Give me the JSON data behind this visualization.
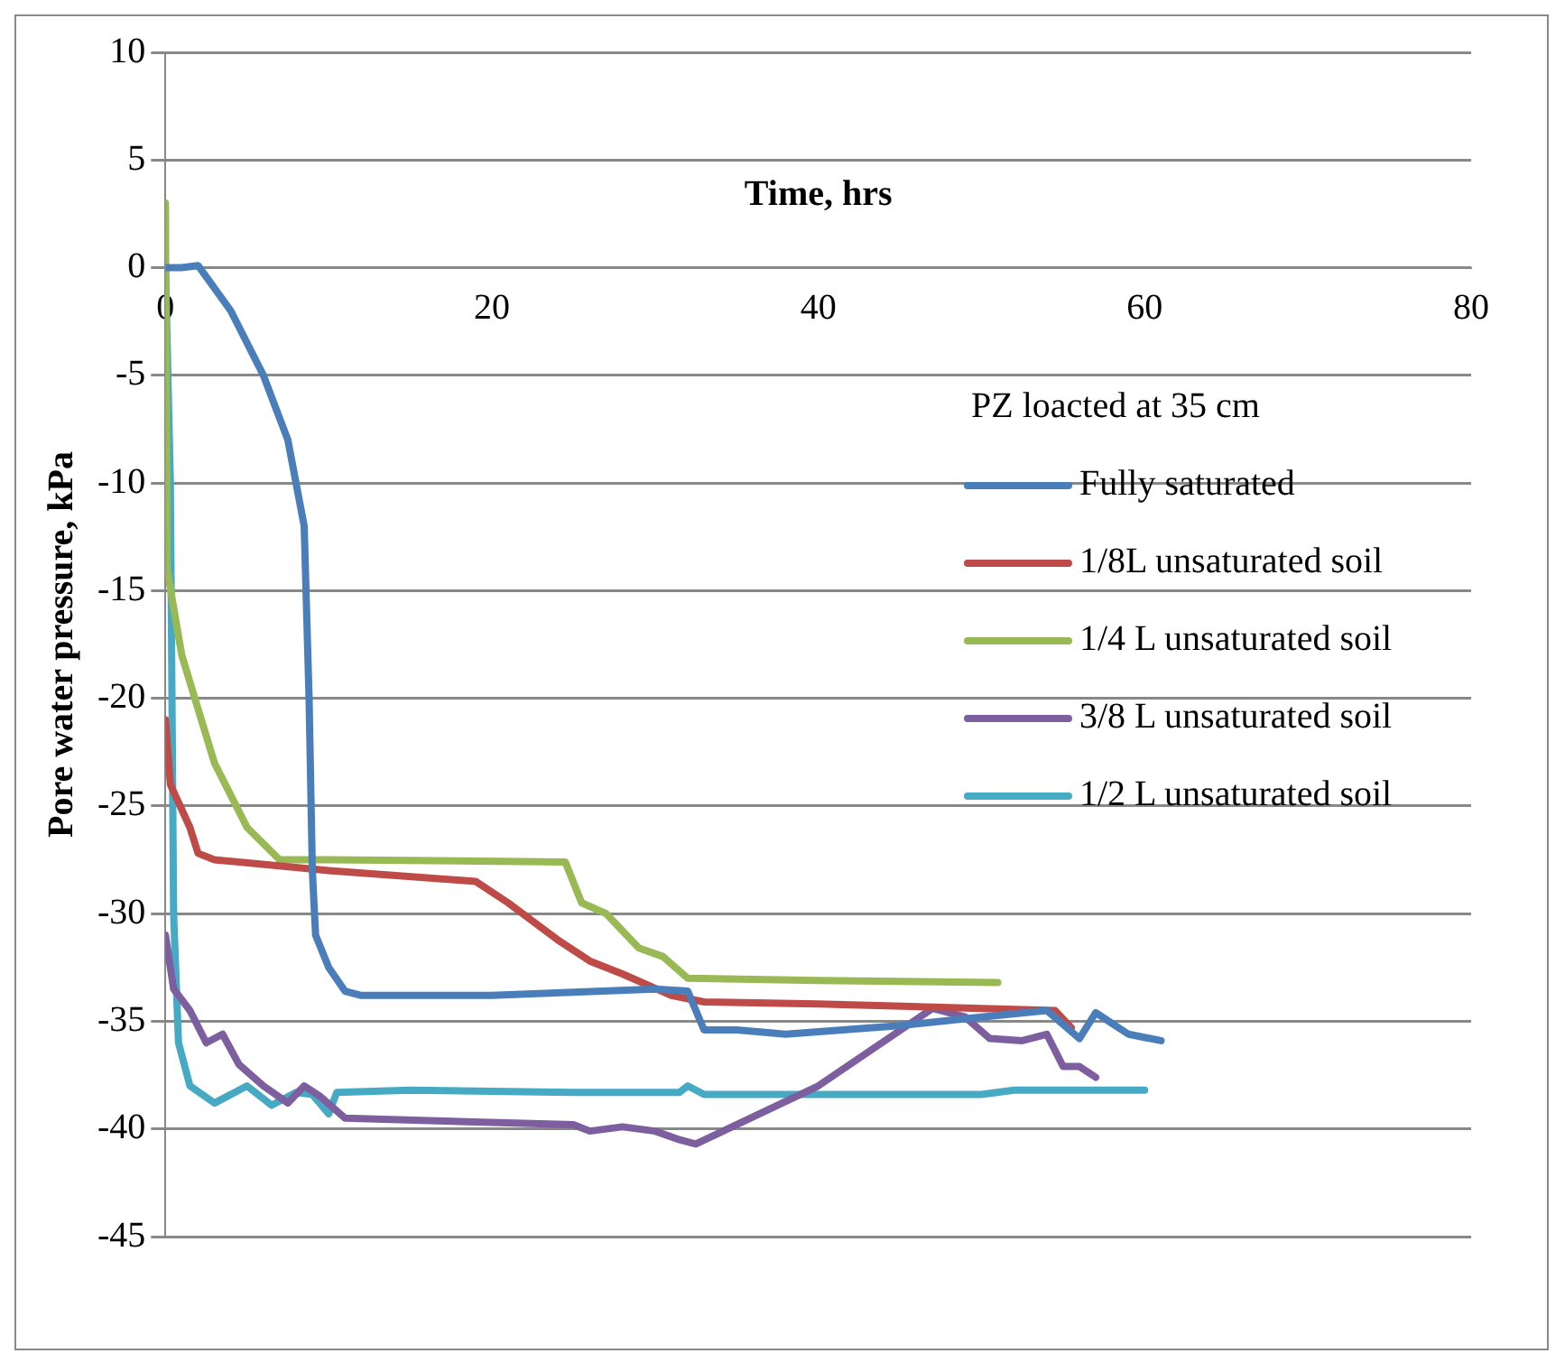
{
  "chart_data": {
    "type": "line",
    "xlabel": "Time, hrs",
    "ylabel": "Pore water pressure, kPa",
    "legend_title": "PZ loacted at 35 cm",
    "xlim": [
      0,
      80
    ],
    "xticks": [
      0,
      20,
      40,
      60,
      80
    ],
    "ylim": [
      -45,
      10
    ],
    "yticks": [
      -45,
      -40,
      -35,
      -30,
      -25,
      -20,
      -15,
      -10,
      -5,
      0,
      5,
      10
    ],
    "grid": "y",
    "legend": "right",
    "marker": "none",
    "line_style": "solid",
    "series": [
      {
        "name": "Fully saturated",
        "color": "#4a7ebb",
        "x": [
          0,
          1,
          2,
          4,
          6,
          7.5,
          8.5,
          8.8,
          9,
          9.2,
          10,
          11,
          12,
          20,
          30,
          32,
          33,
          35,
          38,
          45,
          50,
          54,
          56,
          57,
          58,
          59,
          61
        ],
        "values": [
          0,
          0,
          0.1,
          -2,
          -5,
          -8,
          -12,
          -20,
          -28,
          -31,
          -32.5,
          -33.6,
          -33.8,
          -33.8,
          -33.5,
          -33.6,
          -35.4,
          -35.4,
          -35.6,
          -35.2,
          -34.8,
          -34.5,
          -35.8,
          -34.6,
          -35.1,
          -35.6,
          -35.9
        ]
      },
      {
        "name": "1/8L unsaturated soil",
        "color": "#be4b48",
        "x": [
          0,
          0.3,
          1.5,
          2,
          3,
          10,
          19,
          21,
          24,
          26,
          28,
          31,
          33,
          40,
          50,
          54.5,
          55.5
        ],
        "values": [
          -21,
          -24,
          -26,
          -27.2,
          -27.5,
          -28,
          -28.5,
          -29.5,
          -31.2,
          -32.2,
          -32.8,
          -33.8,
          -34.1,
          -34.2,
          -34.4,
          -34.5,
          -35.3
        ]
      },
      {
        "name": "1/4 L unsaturated soil",
        "color": "#98b954",
        "x": [
          0,
          0.1,
          1,
          3,
          5,
          7,
          10,
          24.5,
          25.5,
          27,
          29,
          30.5,
          32,
          40,
          51
        ],
        "values": [
          3,
          -14,
          -18,
          -23,
          -26,
          -27.5,
          -27.5,
          -27.6,
          -29.5,
          -30,
          -31.6,
          -32,
          -33,
          -33.1,
          -33.2
        ]
      },
      {
        "name": "3/8 L unsaturated soil",
        "color": "#7d5fa0",
        "x": [
          0,
          0.5,
          1.5,
          2.5,
          3.5,
          4.5,
          6,
          7.5,
          8.5,
          9.5,
          11,
          20,
          25,
          26,
          28,
          30,
          31.5,
          32.5,
          40,
          47,
          49,
          50.5,
          52.5,
          54,
          55,
          56,
          57
        ],
        "values": [
          -31,
          -33.5,
          -34.5,
          -36,
          -35.6,
          -37,
          -38,
          -38.8,
          -38,
          -38.5,
          -39.5,
          -39.7,
          -39.8,
          -40.1,
          -39.9,
          -40.1,
          -40.5,
          -40.7,
          -38,
          -34.4,
          -34.8,
          -35.8,
          -35.9,
          -35.6,
          -37.1,
          -37.1,
          -37.6
        ]
      },
      {
        "name": "1/2 L unsaturated soil",
        "color": "#46aac5",
        "x": [
          0,
          0.3,
          0.5,
          0.8,
          1.5,
          3,
          5,
          6.5,
          8,
          9,
          10,
          10.5,
          15,
          25,
          31.5,
          32,
          33,
          45,
          50,
          52,
          60
        ],
        "values": [
          0,
          -10,
          -30,
          -36,
          -38,
          -38.8,
          -38,
          -38.9,
          -38.3,
          -38.4,
          -39.3,
          -38.3,
          -38.2,
          -38.3,
          -38.3,
          -38,
          -38.4,
          -38.4,
          -38.4,
          -38.2,
          -38.2
        ]
      }
    ]
  }
}
